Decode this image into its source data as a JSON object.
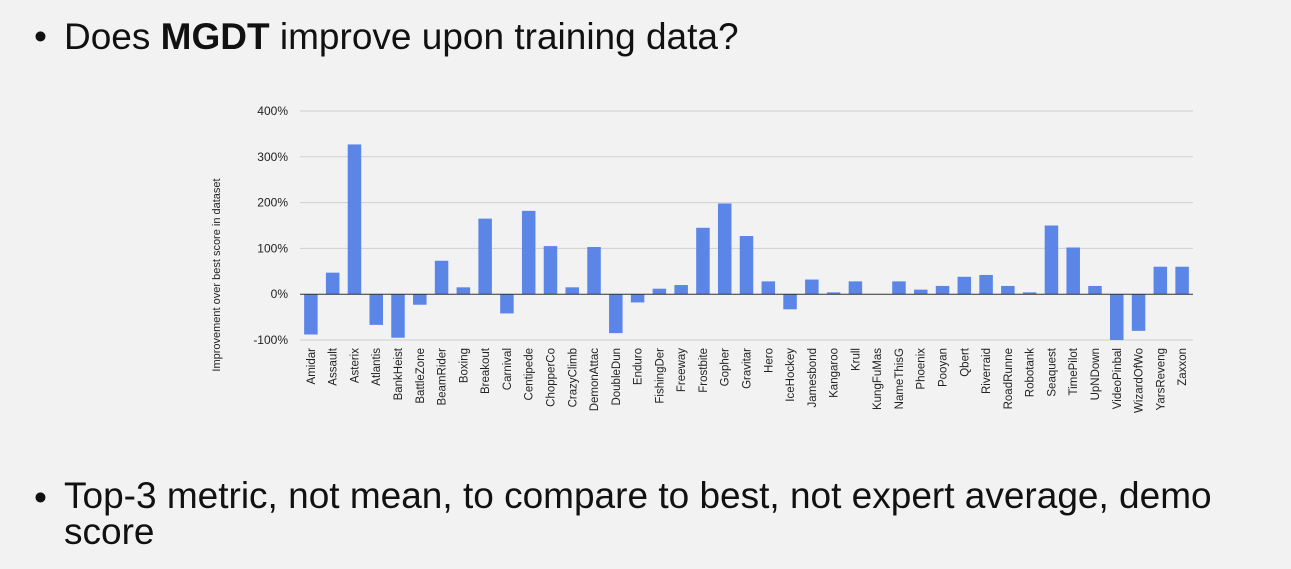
{
  "bullets": [
    {
      "prefix": "Does ",
      "bold": "MGDT",
      "suffix": " improve upon training data?"
    },
    {
      "text": "Top-3 metric, not mean, to compare to best, not expert average, demo score"
    }
  ],
  "bullet_symbol": "•",
  "chart_data": {
    "type": "bar",
    "title": "",
    "xlabel": "",
    "ylabel": "Improvement over best score in dataset",
    "ylim": [
      -100,
      400
    ],
    "yticks": [
      -100,
      0,
      100,
      200,
      300,
      400
    ],
    "ytick_labels": [
      "-100%",
      "0%",
      "100%",
      "200%",
      "300%",
      "400%"
    ],
    "grid": true,
    "bar_color": "#5b85e6",
    "categories": [
      "Amidar",
      "Assault",
      "Asterix",
      "Atlantis",
      "BankHeist",
      "BattleZone",
      "BeamRider",
      "Boxing",
      "Breakout",
      "Carnival",
      "Centipede",
      "ChopperCo",
      "CrazyClimb",
      "DemonAttac",
      "DoubleDun",
      "Enduro",
      "FishingDer",
      "Freeway",
      "Frostbite",
      "Gopher",
      "Gravitar",
      "Hero",
      "IceHockey",
      "Jamesbond",
      "Kangaroo",
      "Krull",
      "KungFuMas",
      "NameThisG",
      "Phoenix",
      "Pooyan",
      "Qbert",
      "Riverraid",
      "RoadRunne",
      "Robotank",
      "Seaquest",
      "TimePilot",
      "UpNDown",
      "VideoPinbal",
      "WizardOfWo",
      "YarsReveng",
      "Zaxxon"
    ],
    "values": [
      -88,
      47,
      327,
      -67,
      -95,
      -23,
      73,
      15,
      165,
      -42,
      182,
      105,
      15,
      103,
      -85,
      -18,
      12,
      20,
      145,
      198,
      127,
      28,
      -33,
      32,
      4,
      28,
      0,
      28,
      10,
      18,
      38,
      42,
      18,
      4,
      150,
      102,
      18,
      -100,
      -80,
      60,
      60
    ]
  }
}
